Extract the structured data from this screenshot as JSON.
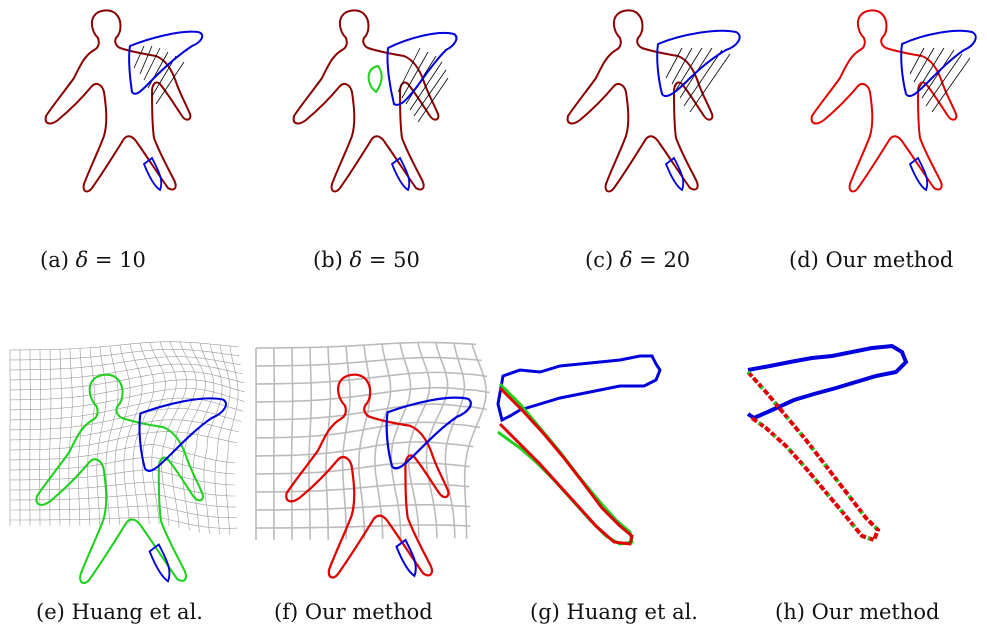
{
  "figure": {
    "captions": [
      {
        "label": "(a)",
        "prefix": "δ",
        "text": " = 10"
      },
      {
        "label": "(b)",
        "prefix": "δ",
        "text": " = 50"
      },
      {
        "label": "(c)",
        "prefix": "δ",
        "text": " = 20"
      },
      {
        "label": "(d)",
        "prefix": "",
        "text": "Our method"
      },
      {
        "label": "(e)",
        "prefix": "",
        "text": "Huang et al."
      },
      {
        "label": "(f)",
        "prefix": "",
        "text": "Our method"
      },
      {
        "label": "(g)",
        "prefix": "",
        "text": "Huang et al."
      },
      {
        "label": "(h)",
        "prefix": "",
        "text": "Our method"
      }
    ],
    "colors": {
      "source_contour": "#0000dd",
      "target_contour": "#e00000",
      "registered_contour": "#1fd01f",
      "overlap_contour": "#8b0000",
      "correspondence_lines": "#000000",
      "grid": "#888888"
    }
  }
}
